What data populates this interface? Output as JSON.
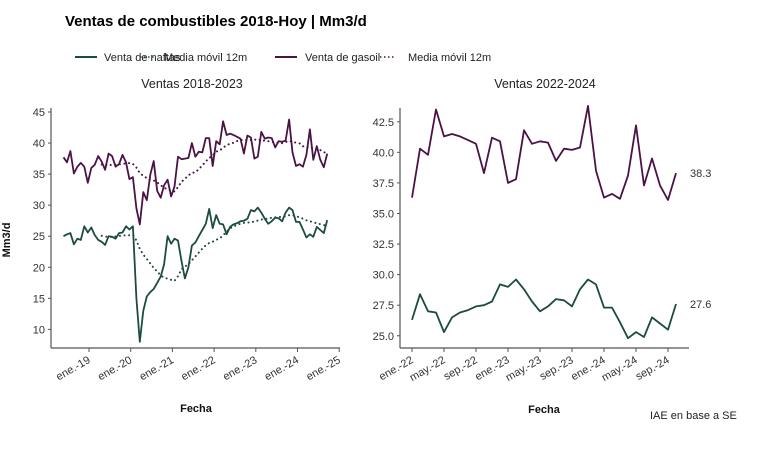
{
  "title": "Ventas de combustibles 2018-Hoy | Mm3/d",
  "source": "IAE en base a SE",
  "colors": {
    "naftas": "#1b4d3a",
    "gasoil": "#4b1246"
  },
  "legend": [
    {
      "label": "Venta de naftas",
      "style": "solid",
      "color": "naftas"
    },
    {
      "label": "Media móvil 12m",
      "style": "dotted",
      "color": "naftas"
    },
    {
      "label": "Venta de gasoil",
      "style": "solid",
      "color": "gasoil"
    },
    {
      "label": "Media móvil 12m",
      "style": "dotted",
      "color": "gasoil"
    }
  ],
  "chart_data": [
    {
      "type": "line",
      "title": "Ventas 2018-2023",
      "xlabel": "Fecha",
      "ylabel": "Mm3/d",
      "x_start": "2018-06",
      "x_end": "2024-10",
      "frequency": "monthly",
      "x_ticks": [
        "ene.-19",
        "ene.-20",
        "ene.-21",
        "ene.-22",
        "ene.-23",
        "ene.-24",
        "ene.-25"
      ],
      "ylim": [
        7,
        45
      ],
      "y_ticks": [
        10,
        15,
        20,
        25,
        30,
        35,
        40,
        45
      ],
      "grid": false,
      "series": [
        {
          "name": "Venta de naftas",
          "color": "naftas",
          "values": [
            25.0,
            25.3,
            25.5,
            23.7,
            24.6,
            24.4,
            26.6,
            25.6,
            26.4,
            25.2,
            24.4,
            24.1,
            23.6,
            25.0,
            24.9,
            24.6,
            25.5,
            25.6,
            26.6,
            26.1,
            26.6,
            15.0,
            8.0,
            13.0,
            15.3,
            16.0,
            16.5,
            17.5,
            18.5,
            20.5,
            25.0,
            23.8,
            24.6,
            24.3,
            21.0,
            18.2,
            20.0,
            23.5,
            24.0,
            25.0,
            26.0,
            27.0,
            29.4,
            26.3,
            28.4,
            27.0,
            26.9,
            25.3,
            26.5,
            26.9,
            27.1,
            27.4,
            27.5,
            27.8,
            29.2,
            29.0,
            29.6,
            28.8,
            27.8,
            27.0,
            27.4,
            28.0,
            27.9,
            27.4,
            28.8,
            29.6,
            29.2,
            27.3,
            27.3,
            26.1,
            24.8,
            25.3,
            24.9,
            26.5,
            26.0,
            25.5,
            27.6
          ]
        },
        {
          "name": "Media móvil 12m",
          "color": "naftas",
          "moving_average_of": 0,
          "window": 12,
          "dotted": true
        },
        {
          "name": "Venta de gasoil",
          "color": "gasoil",
          "values": [
            37.7,
            36.9,
            38.7,
            35.1,
            36.2,
            36.8,
            36.2,
            33.6,
            36.0,
            36.5,
            37.9,
            37.0,
            35.7,
            38.3,
            37.9,
            36.2,
            36.6,
            38.1,
            36.9,
            34.2,
            34.5,
            29.5,
            26.9,
            32.1,
            30.8,
            34.9,
            37.1,
            32.3,
            31.2,
            33.2,
            34.1,
            31.4,
            33.0,
            37.8,
            37.4,
            37.5,
            37.6,
            40.0,
            37.8,
            38.6,
            38.5,
            40.8,
            40.8,
            36.3,
            40.3,
            39.8,
            43.5,
            41.3,
            41.5,
            41.3,
            41.0,
            40.7,
            38.3,
            41.2,
            40.9,
            37.5,
            37.8,
            41.8,
            40.7,
            40.9,
            40.8,
            39.3,
            40.3,
            40.2,
            40.4,
            43.8,
            38.5,
            36.3,
            36.6,
            36.2,
            38.1,
            42.2,
            37.3,
            39.5,
            37.3,
            36.1,
            38.3
          ]
        },
        {
          "name": "Media móvil 12m",
          "color": "gasoil",
          "moving_average_of": 2,
          "window": 12,
          "dotted": true
        }
      ]
    },
    {
      "type": "line",
      "title": "Ventas 2022-2024",
      "xlabel": "Fecha",
      "x_start": "2022-01",
      "x_end": "2024-10",
      "frequency": "monthly",
      "x_ticks": [
        "ene.-22",
        "may.-22",
        "sep.-22",
        "ene.-23",
        "may.-23",
        "sep.-23",
        "ene.-24",
        "may.-24",
        "sep.-24"
      ],
      "ylim": [
        24,
        44
      ],
      "y_ticks": [
        "25.0",
        "27.5",
        "30.0",
        "32.5",
        "35.0",
        "37.5",
        "40.0",
        "42.5"
      ],
      "grid": false,
      "series": [
        {
          "name": "Venta de gasoil",
          "color": "gasoil",
          "end_label": "38.3",
          "values": [
            36.3,
            40.3,
            39.8,
            43.5,
            41.3,
            41.5,
            41.3,
            41.0,
            40.7,
            38.3,
            41.2,
            40.9,
            37.5,
            37.8,
            41.8,
            40.7,
            40.9,
            40.8,
            39.3,
            40.3,
            40.2,
            40.4,
            43.8,
            38.5,
            36.3,
            36.6,
            36.2,
            38.1,
            42.2,
            37.3,
            39.5,
            37.3,
            36.1,
            38.3
          ]
        },
        {
          "name": "Venta de naftas",
          "color": "naftas",
          "end_label": "27.6",
          "values": [
            26.3,
            28.4,
            27.0,
            26.9,
            25.3,
            26.5,
            26.9,
            27.1,
            27.4,
            27.5,
            27.8,
            29.2,
            29.0,
            29.6,
            28.8,
            27.8,
            27.0,
            27.4,
            28.0,
            27.9,
            27.4,
            28.8,
            29.6,
            29.2,
            27.3,
            27.3,
            26.1,
            24.8,
            25.3,
            24.9,
            26.5,
            26.0,
            25.5,
            27.6
          ]
        }
      ]
    }
  ]
}
